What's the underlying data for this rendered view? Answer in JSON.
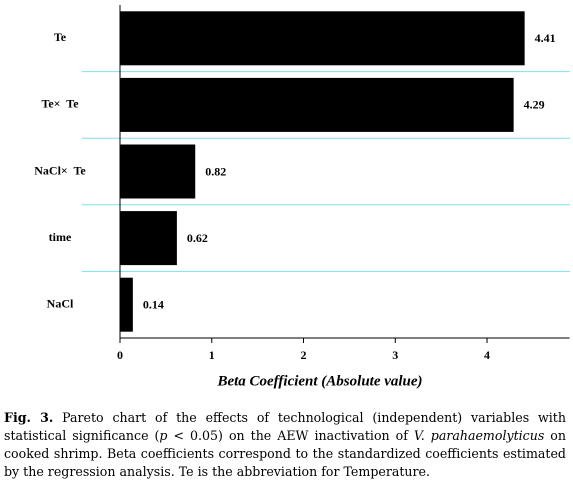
{
  "chart_data": {
    "type": "bar",
    "orientation": "horizontal",
    "categories": [
      "Te",
      "Te×  Te",
      "NaCl×  Te",
      "time",
      "NaCl"
    ],
    "values": [
      4.41,
      4.29,
      0.82,
      0.62,
      0.14
    ],
    "color": "#000000",
    "separator_color": "#7fe0f0",
    "xlim": [
      0,
      4.9
    ],
    "xticks": [
      0,
      1,
      2,
      3,
      4
    ],
    "xlabel": "Beta Coefficient (Absolute value)"
  },
  "caption": {
    "label": "Fig. 3.",
    "text_1": "Pareto chart of the effects of technological (independent) variables with statistical significance (",
    "p": "p",
    "text_2": " < 0.05) on the AEW inactivation of ",
    "species": "V. parahaemolyticus",
    "text_3": " on cooked shrimp. Beta coefficients correspond to the standardized coefficients estimated by the regression analysis. Te is the abbreviation for Temperature."
  }
}
